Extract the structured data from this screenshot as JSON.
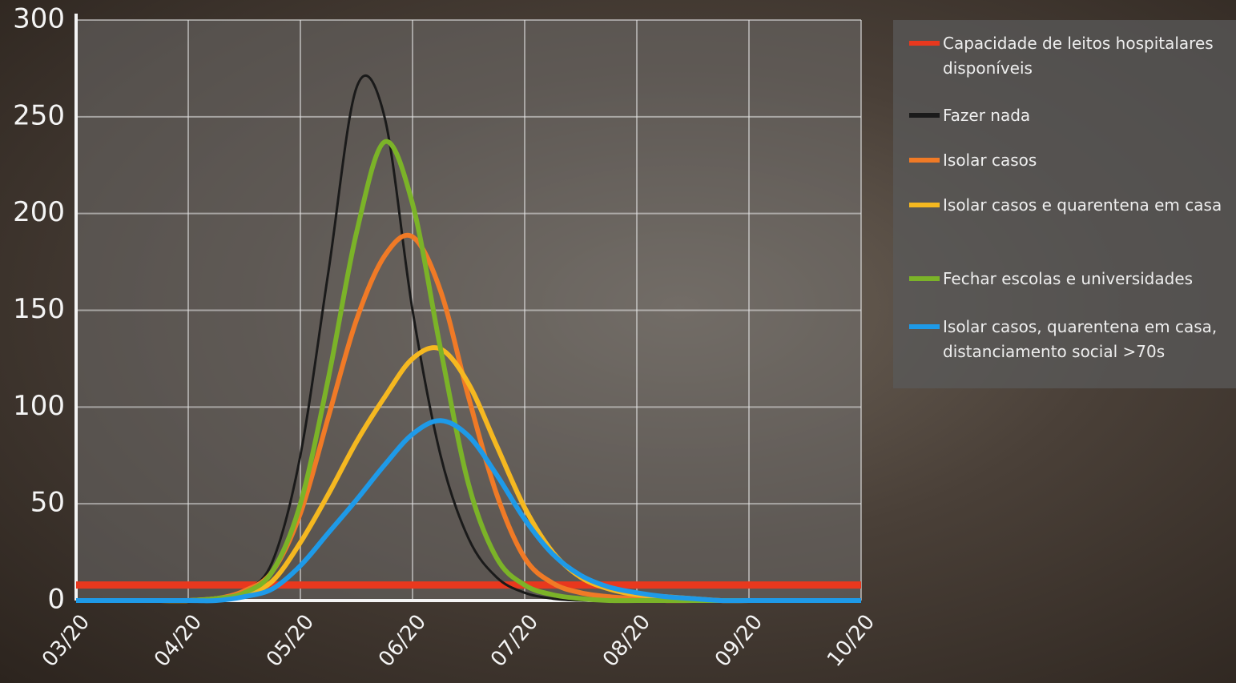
{
  "chart_data": {
    "type": "line",
    "categories": [
      "03/20",
      null,
      null,
      null,
      "04/20",
      null,
      null,
      null,
      "05/20",
      null,
      null,
      null,
      "06/20",
      null,
      null,
      null,
      "07/20",
      null,
      null,
      null,
      "08/20",
      null,
      null,
      null,
      "09/20",
      null,
      null,
      null,
      "10/20"
    ],
    "ylim": [
      0,
      300
    ],
    "yticks": [
      0,
      50,
      100,
      150,
      200,
      250,
      300
    ],
    "grid": true,
    "legend": "right",
    "series": [
      {
        "name": "Capacidade de leitos hospitalares disponíveis",
        "color": "#e8381e",
        "values": [
          8,
          8,
          8,
          8,
          8,
          8,
          8,
          8,
          8,
          8,
          8,
          8,
          8,
          8,
          8,
          8,
          8,
          8,
          8,
          8,
          8,
          8,
          8,
          8,
          8,
          8,
          8,
          8,
          8
        ]
      },
      {
        "name": "Fazer nada",
        "color": "#1a1a1a",
        "values": [
          0,
          0,
          0,
          0,
          0,
          1,
          5,
          20,
          75,
          170,
          265,
          250,
          150,
          75,
          32,
          12,
          4,
          1,
          0,
          0,
          0,
          0,
          0,
          0,
          0,
          0,
          0,
          0,
          0
        ]
      },
      {
        "name": "Isolar casos",
        "color": "#f07a26",
        "values": [
          0,
          0,
          0,
          0,
          0,
          1,
          5,
          15,
          45,
          95,
          145,
          178,
          188,
          160,
          105,
          55,
          22,
          9,
          4,
          2,
          1,
          0,
          0,
          0,
          0,
          0,
          0,
          0,
          0
        ]
      },
      {
        "name": "Isolar casos e quarentena em casa",
        "color": "#f5b820",
        "values": [
          0,
          0,
          0,
          0,
          0,
          1,
          3,
          10,
          30,
          55,
          82,
          105,
          125,
          130,
          112,
          80,
          48,
          25,
          12,
          6,
          3,
          2,
          1,
          0,
          0,
          0,
          0,
          0,
          0
        ]
      },
      {
        "name": "Fechar escolas e universidades",
        "color": "#7bb328",
        "values": [
          0,
          0,
          0,
          0,
          0,
          1,
          4,
          15,
          50,
          115,
          190,
          237,
          205,
          130,
          60,
          22,
          8,
          3,
          1,
          0,
          0,
          0,
          0,
          0,
          0,
          0,
          0,
          0,
          0
        ]
      },
      {
        "name": "Isolar casos, quarentena em casa, distanciamento social >70s",
        "color": "#1e9ae8",
        "values": [
          0,
          0,
          0,
          0,
          0,
          0,
          2,
          6,
          18,
          35,
          52,
          70,
          86,
          93,
          85,
          65,
          42,
          24,
          13,
          7,
          4,
          2,
          1,
          0,
          0,
          0,
          0,
          0,
          0
        ]
      }
    ]
  }
}
